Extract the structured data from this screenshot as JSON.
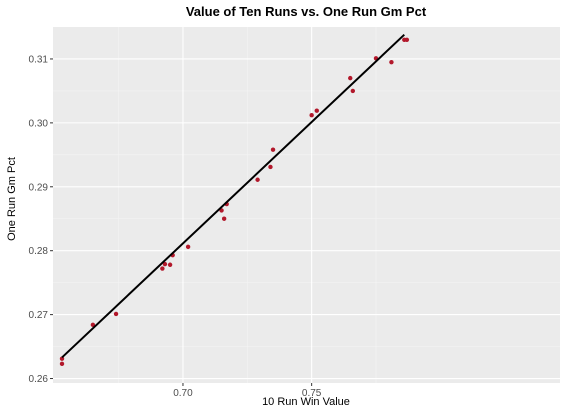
{
  "chart_data": {
    "type": "scatter",
    "title": "Value of Ten Runs vs. One Run Gm Pct",
    "xlabel": "10 Run Win Value",
    "ylabel": "One Run Gm Pct",
    "xlim": [
      0.6495,
      0.8465
    ],
    "ylim": [
      0.2593,
      0.315
    ],
    "x_ticks": [
      0.7,
      0.75
    ],
    "x_tick_labels": [
      "0.70",
      "0.75"
    ],
    "y_ticks": [
      0.26,
      0.27,
      0.28,
      0.29,
      0.3,
      0.31
    ],
    "y_tick_labels": [
      "0.26",
      "0.27",
      "0.28",
      "0.29",
      "0.30",
      "0.31"
    ],
    "grid": true,
    "series": [
      {
        "points": [
          [
            0.653,
            0.2631
          ],
          [
            0.653,
            0.2623
          ],
          [
            0.665,
            0.2684
          ],
          [
            0.674,
            0.2701
          ],
          [
            0.692,
            0.2772
          ],
          [
            0.693,
            0.2779
          ],
          [
            0.695,
            0.2778
          ],
          [
            0.696,
            0.2793
          ],
          [
            0.702,
            0.2806
          ],
          [
            0.715,
            0.2863
          ],
          [
            0.716,
            0.285
          ],
          [
            0.717,
            0.2873
          ],
          [
            0.729,
            0.2911
          ],
          [
            0.734,
            0.2931
          ],
          [
            0.735,
            0.2958
          ],
          [
            0.75,
            0.3012
          ],
          [
            0.752,
            0.3019
          ],
          [
            0.765,
            0.307
          ],
          [
            0.766,
            0.305
          ],
          [
            0.775,
            0.3101
          ],
          [
            0.781,
            0.3095
          ],
          [
            0.786,
            0.313
          ],
          [
            0.787,
            0.313
          ]
        ]
      }
    ],
    "fit_line": {
      "x": [
        0.653,
        0.786
      ],
      "y": [
        0.2633,
        0.3138
      ]
    },
    "colors": {
      "panel_background": "#ebebeb",
      "grid_major": "#ffffff",
      "grid_minor": "#f4f4f4",
      "point": "#b2182b",
      "fit_line": "#000000",
      "tick_text": "#4d4d4d",
      "tick_mark": "#333333"
    }
  }
}
